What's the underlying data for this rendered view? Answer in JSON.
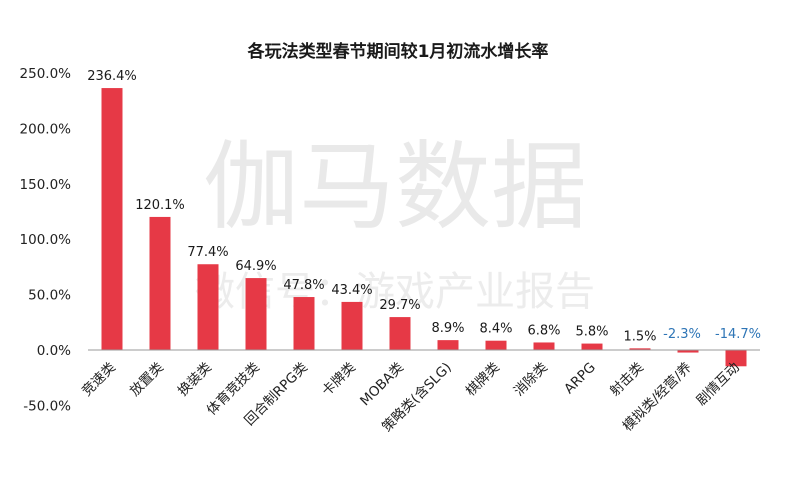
{
  "watermark": {
    "main": "伽马数据",
    "sub": "微信号：游戏产业报告"
  },
  "colors": {
    "bar": "#e63946",
    "label_positive": "#1a1a1a",
    "label_negative": "#2e75b6",
    "axis": "#999999"
  },
  "chart_data": {
    "type": "bar",
    "title": "各玩法类型春节期间较1月初流水增长率",
    "categories": [
      "竞速类",
      "放置类",
      "换装类",
      "体育竞技类",
      "回合制RPG类",
      "卡牌类",
      "MOBA类",
      "策略类（含SLG）",
      "棋牌类",
      "消除类",
      "ARPG",
      "射击类",
      "模拟类/经营类/养成类",
      "剧情互动"
    ],
    "values": [
      236.4,
      120.1,
      77.4,
      64.9,
      47.8,
      43.4,
      29.7,
      8.9,
      8.4,
      6.8,
      5.8,
      1.5,
      -2.3,
      -14.7
    ],
    "data_labels": [
      "236.4%",
      "120.1%",
      "77.4%",
      "64.9%",
      "47.8%",
      "43.4%",
      "29.7%",
      "8.9%",
      "8.4%",
      "6.8%",
      "5.8%",
      "1.5%",
      "-2.3%",
      "-14.7%"
    ],
    "yticks": [
      "-50.0%",
      "0.0%",
      "50.0%",
      "100.0%",
      "150.0%",
      "200.0%",
      "250.0%"
    ],
    "ytick_values": [
      -50,
      0,
      50,
      100,
      150,
      200,
      250
    ],
    "ylim": [
      -50,
      250
    ],
    "grid": false,
    "legend": "none"
  }
}
